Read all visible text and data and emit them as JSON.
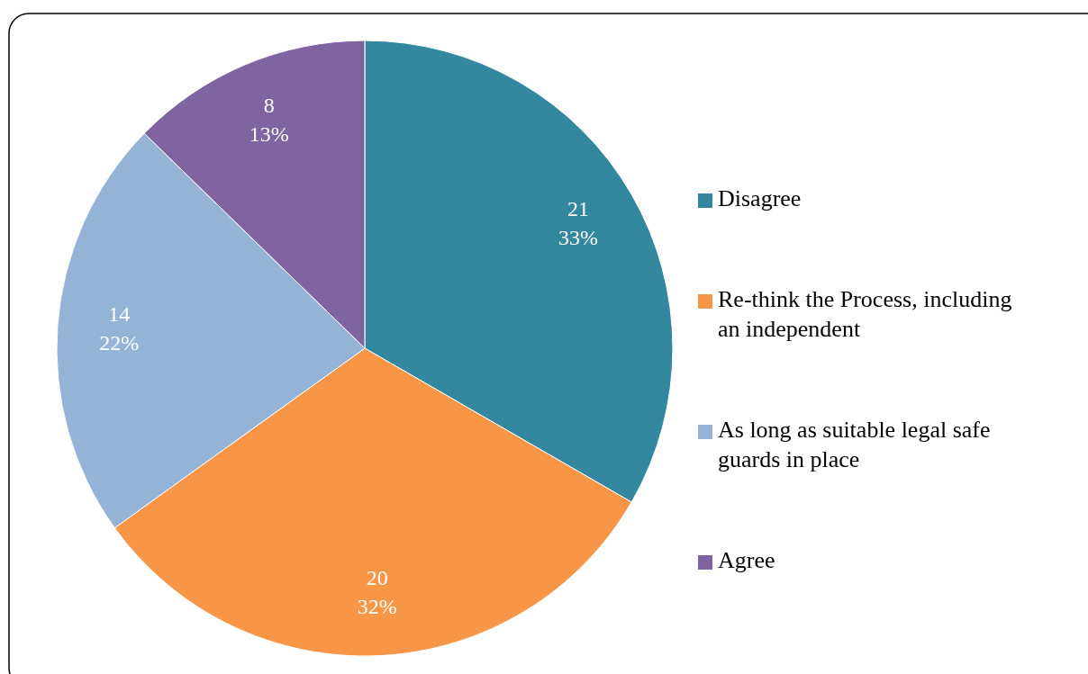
{
  "chart_data": {
    "type": "pie",
    "categories": [
      "Disagree",
      "Re-think the Process, including an independent",
      "As long as suitable legal safe guards in place",
      "Agree"
    ],
    "values": [
      21,
      20,
      14,
      8
    ],
    "colors": [
      "#33879e",
      "#f79646",
      "#95b3d7",
      "#8064a2"
    ],
    "value_labels": [
      "21\n33%",
      "20\n32%",
      "14\n22%",
      "8\n13%"
    ],
    "legend": "right"
  }
}
